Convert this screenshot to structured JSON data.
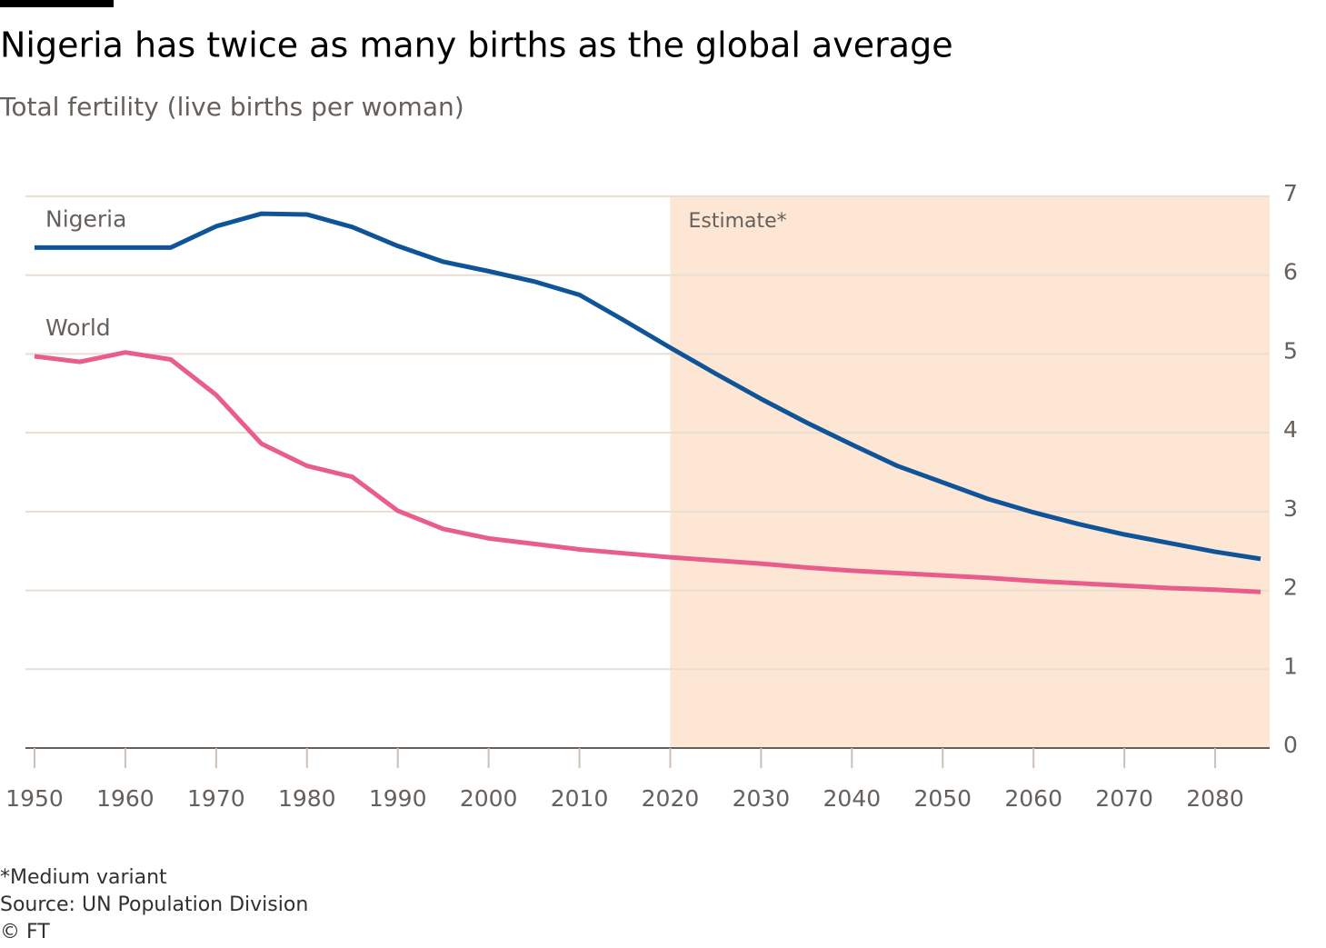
{
  "chart_data": {
    "type": "line",
    "title": "Nigeria has twice as many births as the global average",
    "subtitle": "Total fertility (live births per woman)",
    "x": [
      1950,
      1955,
      1960,
      1965,
      1970,
      1975,
      1980,
      1985,
      1990,
      1995,
      2000,
      2005,
      2010,
      2015,
      2020,
      2025,
      2030,
      2035,
      2040,
      2045,
      2050,
      2055,
      2060,
      2065,
      2070,
      2075,
      2080,
      2085
    ],
    "series": [
      {
        "name": "Nigeria",
        "color": "#0f5499",
        "values": [
          6.35,
          6.35,
          6.35,
          6.35,
          6.62,
          6.78,
          6.77,
          6.61,
          6.37,
          6.17,
          6.05,
          5.92,
          5.75,
          5.42,
          5.08,
          4.75,
          4.43,
          4.13,
          3.85,
          3.58,
          3.37,
          3.16,
          2.99,
          2.84,
          2.71,
          2.6,
          2.49,
          2.4
        ]
      },
      {
        "name": "World",
        "color": "#e95d8c",
        "values": [
          4.97,
          4.9,
          5.02,
          4.93,
          4.48,
          3.86,
          3.58,
          3.44,
          3.01,
          2.78,
          2.66,
          2.59,
          2.52,
          2.47,
          2.42,
          2.38,
          2.34,
          2.29,
          2.25,
          2.22,
          2.19,
          2.16,
          2.12,
          2.09,
          2.06,
          2.03,
          2.01,
          1.98
        ]
      }
    ],
    "xlim": [
      1949,
      2086
    ],
    "xticks": [
      1950,
      1960,
      1970,
      1980,
      1990,
      2000,
      2010,
      2020,
      2030,
      2040,
      2050,
      2060,
      2070,
      2080
    ],
    "ylim": [
      0,
      7
    ],
    "yticks": [
      0,
      1,
      2,
      3,
      4,
      5,
      6,
      7
    ],
    "grid": true,
    "shade": {
      "from": 2020,
      "label": "Estimate*",
      "color": "#fde6d3"
    },
    "footnotes": [
      "*Medium variant",
      "Source: UN Population Division",
      "© FT"
    ]
  }
}
